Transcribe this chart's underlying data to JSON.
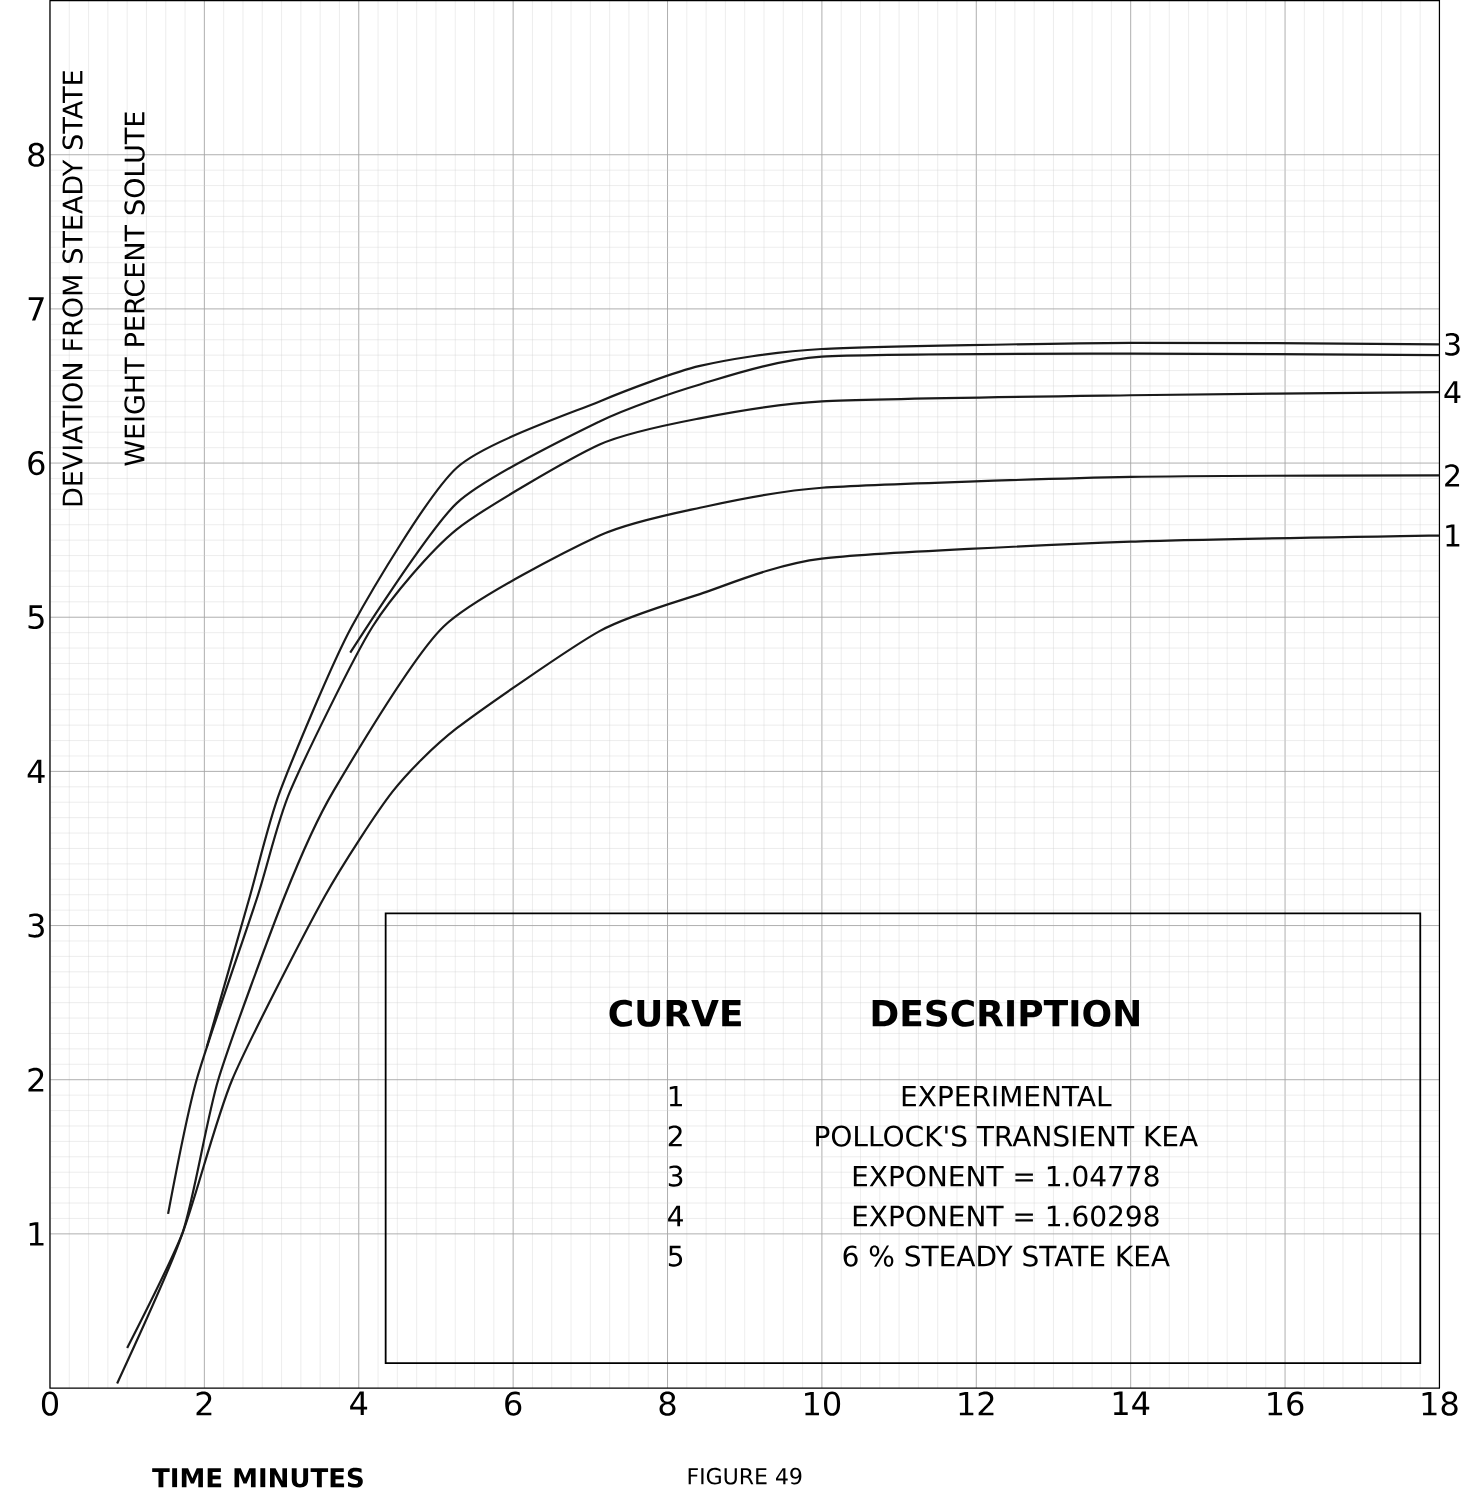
{
  "chart_data": {
    "type": "line",
    "xlabel": "TIME MINUTES",
    "ylabel": "DEVIATION FROM STEADY STATE WEIGHT PERCENT SOLUTE",
    "xlim": [
      0,
      18
    ],
    "ylim": [
      0,
      9
    ],
    "xticks": [
      0,
      2,
      4,
      6,
      8,
      10,
      12,
      14,
      16,
      18
    ],
    "yticks": [
      1,
      2,
      3,
      4,
      5,
      6,
      7,
      8
    ],
    "grid": true,
    "marker": "none",
    "line_style": "solid",
    "series": [
      {
        "name": "1",
        "color": "#1a1a1a",
        "x": [
          1.0,
          1.72,
          2.36,
          3.56,
          4.44,
          5.27,
          7.12,
          8.42,
          10,
          14,
          18
        ],
        "values": [
          0.26,
          1.01,
          2.0,
          3.19,
          3.87,
          4.28,
          4.91,
          5.15,
          5.38,
          5.49,
          5.53
        ]
      },
      {
        "name": "2",
        "color": "#1a1a1a",
        "x": [
          0.87,
          1.72,
          2.18,
          3.04,
          3.67,
          5.1,
          7.12,
          8.42,
          10,
          14,
          18
        ],
        "values": [
          0.03,
          1.01,
          2.0,
          3.19,
          3.87,
          4.94,
          5.53,
          5.71,
          5.84,
          5.91,
          5.92
        ]
      },
      {
        "name": "3",
        "color": "#1a1a1a",
        "x": [
          2.03,
          2.59,
          2.98,
          3.91,
          5.27,
          7.12,
          8.42,
          10,
          14,
          18
        ],
        "values": [
          2.21,
          3.19,
          3.87,
          4.94,
          5.97,
          6.4,
          6.63,
          6.74,
          6.78,
          6.77
        ]
      },
      {
        "name": "4",
        "color": "#1a1a1a",
        "x": [
          1.53,
          1.9,
          2.69,
          3.11,
          4.18,
          5.27,
          7.12,
          8.42,
          10,
          14,
          18
        ],
        "values": [
          1.13,
          2.0,
          3.19,
          3.87,
          4.94,
          5.57,
          6.12,
          6.29,
          6.4,
          6.44,
          6.46
        ]
      },
      {
        "color": "#1a1a1a",
        "x": [
          3.89,
          5.27,
          7.12,
          8.42,
          10,
          14,
          18
        ],
        "values": [
          4.77,
          5.74,
          6.27,
          6.51,
          6.69,
          6.71,
          6.7
        ]
      }
    ],
    "annotations": [
      "CURVE",
      "DESCRIPTION",
      "1",
      "EXPERIMENTAL",
      "2",
      "POLLOCK'S TRANSIENT KEA",
      "3",
      "EXPONENT = 1.04778",
      "4",
      "EXPONENT = 1.60298",
      "5",
      "6 % STEADY STATE KEA",
      "FIGURE 49"
    ]
  }
}
